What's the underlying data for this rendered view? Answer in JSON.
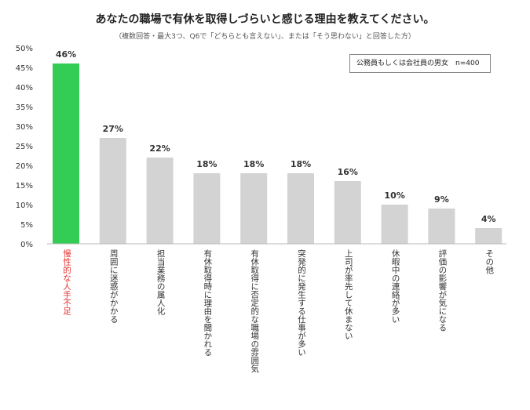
{
  "chart_data": {
    "type": "bar",
    "title": "あなたの職場で有休を取得しづらいと感じる理由を教えてください。",
    "subtitle": "（複数回答・最大3つ、Q6で「どちらとも言えない」、または「そう思わない」と回答した方）",
    "legend": "公務員もしくは会社員の男女　n=400",
    "categories": [
      "慢性的な人手不足",
      "周囲に迷惑がかかる",
      "担当業務の属人化",
      "有休取得時に理由を聞かれる",
      "有休取得に否定的な職場の雰囲気",
      "突発的に発生する仕事が多い",
      "上司が率先して休まない",
      "休暇中の連絡が多い",
      "評価の影響が気になる",
      "その他"
    ],
    "values": [
      46,
      27,
      22,
      18,
      18,
      18,
      16,
      10,
      9,
      4
    ],
    "value_labels": [
      "46%",
      "27%",
      "22%",
      "18%",
      "18%",
      "18%",
      "16%",
      "10%",
      "9%",
      "4%"
    ],
    "yticks": [
      "0%",
      "5%",
      "10%",
      "15%",
      "20%",
      "25%",
      "30%",
      "35%",
      "40%",
      "45%",
      "50%"
    ],
    "ylim": [
      0,
      50
    ],
    "highlight_index": 0,
    "colors": {
      "highlight": "#33cc55",
      "bar": "#d3d3d3",
      "highlight_text": "#e8312f",
      "text": "#333333"
    }
  }
}
